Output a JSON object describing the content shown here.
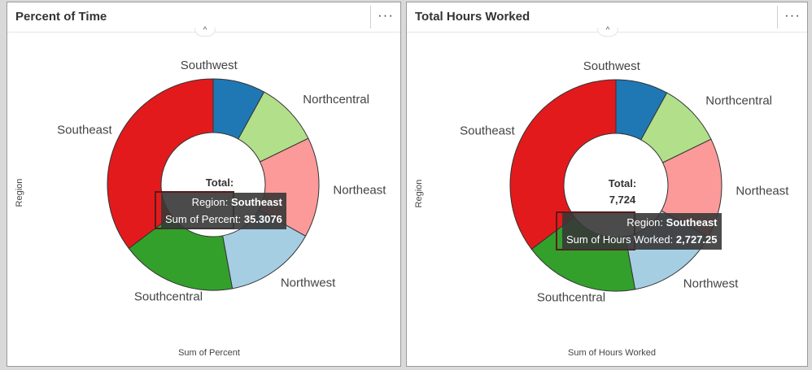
{
  "panels": [
    {
      "title": "Percent of Time",
      "menu_label": "···",
      "collapse_label": "^",
      "tooltip": {
        "field_label": "Region:",
        "field_value": "Southeast",
        "measure_label": "Sum of Percent:",
        "measure_value": "35.3076"
      }
    },
    {
      "title": "Total Hours Worked",
      "menu_label": "···",
      "collapse_label": "^",
      "tooltip": {
        "field_label": "Region:",
        "field_value": "Southeast",
        "measure_label": "Sum of Hours Worked:",
        "measure_value": "2,727.25"
      }
    }
  ],
  "chart_data": [
    {
      "type": "pie",
      "subtype": "donut",
      "ylabel": "Region",
      "xlabel": "Sum of Percent",
      "center_label": "Total:",
      "center_value": "",
      "categories": [
        "Southwest",
        "Northcentral",
        "Northeast",
        "Northwest",
        "Southcentral",
        "Southeast"
      ],
      "values": [
        8.0,
        9.8,
        15.3,
        14.0,
        17.6,
        35.3076
      ],
      "colors": [
        "#1f78b4",
        "#b2df8a",
        "#fb9a99",
        "#a6cee3",
        "#33a02c",
        "#e31a1c"
      ]
    },
    {
      "type": "pie",
      "subtype": "donut",
      "ylabel": "Region",
      "xlabel": "Sum of Hours Worked",
      "center_label": "Total:",
      "center_value": "7,724",
      "categories": [
        "Southwest",
        "Northcentral",
        "Northeast",
        "Northwest",
        "Southcentral",
        "Southeast"
      ],
      "values": [
        618,
        757,
        1182,
        1081,
        1359,
        2727.25
      ],
      "colors": [
        "#1f78b4",
        "#b2df8a",
        "#fb9a99",
        "#a6cee3",
        "#33a02c",
        "#e31a1c"
      ]
    }
  ]
}
